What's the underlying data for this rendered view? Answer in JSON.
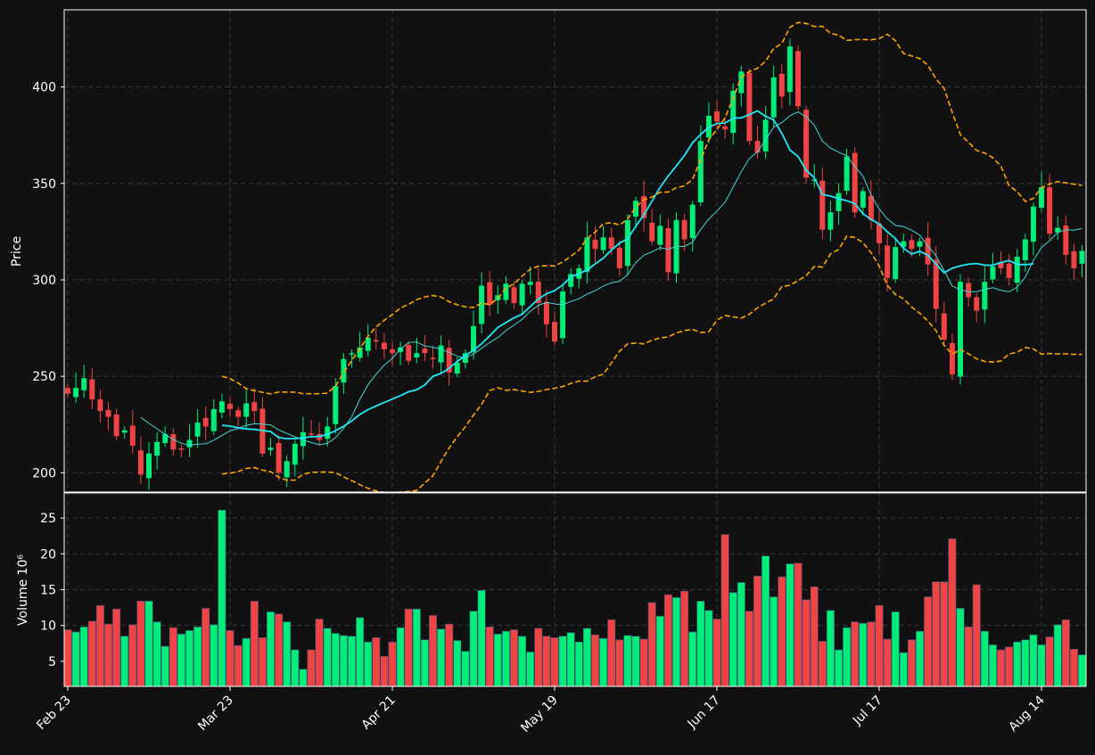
{
  "chart_data": [
    {
      "type": "candlestick",
      "panel": "price",
      "ylabel": "Price",
      "ylim": [
        190,
        440
      ],
      "yticks": [
        200,
        250,
        300,
        350,
        400
      ],
      "x_tick_labels": [
        "Feb 23",
        "Mar 23",
        "Apr 21",
        "May 19",
        "Jun 17",
        "Jul 17",
        "Aug 14"
      ],
      "x_tick_index": [
        0,
        20,
        40,
        60,
        80,
        100,
        120
      ],
      "n_bars": 126,
      "grid": true,
      "colors": {
        "up": "#00ee77",
        "down": "#ee4444",
        "ma_fast": "#3fd9d6",
        "ma_slow": "#21e7f7",
        "bands": "#ffa500",
        "grid": "#3a3a3a",
        "axis": "#ffffff"
      },
      "close": [
        241,
        244,
        249,
        238,
        232,
        229,
        219,
        222,
        214,
        199,
        210,
        216,
        220,
        212,
        212,
        217,
        226,
        224,
        233,
        237,
        233,
        229,
        236,
        232,
        210,
        213,
        200,
        206,
        215,
        221,
        220,
        217,
        224,
        245,
        259,
        262,
        265,
        270,
        268,
        264,
        262,
        265,
        258,
        262,
        262,
        259,
        266,
        252,
        257,
        262,
        276,
        297,
        287,
        292,
        298,
        288,
        298,
        299,
        288,
        277,
        268,
        294,
        303,
        306,
        322,
        316,
        322,
        316,
        306,
        331,
        341,
        332,
        320,
        328,
        304,
        331,
        321,
        339,
        372,
        385,
        382,
        378,
        398,
        408,
        372,
        366,
        383,
        405,
        395,
        421,
        390,
        353,
        352,
        326,
        335,
        345,
        364,
        335,
        346,
        331,
        319,
        301,
        317,
        320,
        316,
        320,
        308,
        285,
        269,
        251,
        299,
        291,
        284,
        299,
        307,
        306,
        301,
        312,
        321,
        338,
        348,
        324,
        327,
        313,
        306,
        315
      ],
      "ma_fast": [
        null,
        null,
        null,
        null,
        null,
        null,
        null,
        null,
        null,
        228.7,
        225.6,
        222.8,
        219.9,
        217.3,
        215.3,
        214.1,
        214.8,
        215.0,
        216.9,
        219.4,
        221.7,
        223.0,
        224.6,
        225.4,
        225.2,
        224.8,
        222.2,
        220.4,
        218.6,
        217.0,
        215.7,
        214.5,
        215.3,
        218.2,
        223.1,
        229.1,
        238.1,
        245.6,
        251.0,
        255.8,
        259.3,
        264.1,
        267.5,
        267.8,
        265.7,
        265.1,
        264.1,
        262.4,
        260.4,
        259.8,
        261.5,
        264.6,
        267.5,
        270.1,
        273.7,
        276.6,
        279.6,
        283.7,
        286.8,
        288.3,
        287.5,
        287.2,
        288.8,
        290.2,
        292.6,
        294.4,
        296.8,
        298.5,
        299.3,
        302.7,
        309.0,
        312.8,
        314.5,
        316.7,
        315.9,
        317.4,
        317.3,
        319.6,
        326.2,
        331.6,
        335.7,
        340.3,
        348.1,
        356.1,
        362.9,
        366.4,
        372.6,
        379.2,
        381.5,
        385.1,
        387.1,
        384.6,
        380.2,
        372.0,
        368.3,
        366.2,
        364.3,
        358.7,
        353.8,
        343.8,
        336.7,
        331.7,
        328.2,
        327.6,
        325.7,
        323.2,
        317.6,
        312.5,
        304.8,
        296.8,
        294.8,
        293.9,
        293.9,
        295.1,
        295.9,
        294.6,
        293.8,
        296.2,
        301.3,
        310.1,
        316.8,
        320.3,
        324.6,
        326.0,
        325.7,
        326.6
      ],
      "ma_slow": [
        null,
        null,
        null,
        null,
        null,
        null,
        null,
        null,
        null,
        null,
        null,
        null,
        null,
        null,
        null,
        null,
        null,
        null,
        null,
        224.6,
        224.2,
        223.3,
        222.7,
        222.5,
        221.9,
        221.4,
        218.2,
        217.7,
        217.7,
        218.1,
        218.7,
        218.8,
        219.9,
        221.8,
        224.1,
        226.9,
        230.2,
        232.7,
        234.6,
        236.4,
        238.2,
        240.0,
        242.0,
        243.0,
        245.5,
        250.0,
        251.5,
        254.2,
        257.7,
        260.7,
        263.5,
        266.9,
        271.0,
        275.3,
        277.9,
        280.3,
        282.2,
        286.2,
        290.1,
        292.8,
        294.4,
        297.4,
        301.5,
        303.2,
        305.0,
        308.3,
        311.3,
        315.4,
        319.0,
        321.3,
        327.8,
        333.7,
        340.8,
        348.0,
        353.8,
        359.1,
        364.5,
        371.1,
        375.4,
        379.0,
        381.1,
        381.3,
        383.8,
        384.0,
        385.7,
        387.6,
        384.8,
        382.9,
        376.0,
        367.3,
        364.0,
        356.8,
        353.0,
        344.3,
        343.4,
        342.1,
        341.0,
        339.5,
        334.3,
        331.3,
        329.0,
        325.0,
        321.4,
        316.4,
        313.4,
        314.8,
        312.8,
        308.1,
        303.7,
        306.1,
        307.3,
        308.1,
        308.5,
        307.6,
        307.6,
        309.0,
        310.0,
        308.0,
        307.9,
        308.3
      ]
    },
    {
      "type": "bar",
      "panel": "volume",
      "ylabel": "Volume  10⁶",
      "ylim": [
        1.5,
        28.5
      ],
      "yticks": [
        5,
        10,
        15,
        20,
        25
      ],
      "values": [
        9.4,
        9.1,
        9.8,
        10.6,
        12.8,
        10.2,
        12.3,
        8.5,
        10.1,
        13.4,
        13.4,
        10.5,
        7.1,
        9.7,
        8.8,
        9.3,
        9.8,
        12.4,
        10.1,
        26.1,
        9.3,
        7.2,
        8.2,
        13.4,
        8.3,
        11.9,
        11.6,
        10.5,
        6.6,
        3.9,
        6.6,
        10.9,
        9.6,
        8.9,
        8.6,
        8.5,
        11.1,
        7.7,
        8.3,
        5.7,
        7.7,
        9.7,
        12.3,
        12.3,
        8.0,
        11.4,
        9.5,
        10.2,
        7.9,
        6.4,
        12.0,
        14.9,
        9.8,
        8.8,
        9.2,
        9.4,
        8.5,
        6.3,
        9.6,
        8.5,
        8.3,
        8.5,
        9.0,
        7.7,
        9.6,
        8.7,
        8.2,
        10.8,
        8.0,
        8.6,
        8.5,
        8.1,
        13.2,
        11.3,
        14.3,
        13.9,
        14.8,
        9.1,
        13.4,
        12.1,
        10.9,
        22.7,
        14.6,
        16.0,
        12.0,
        16.9,
        19.7,
        14.0,
        16.8,
        18.6,
        18.7,
        13.6,
        15.4,
        7.8,
        12.1,
        6.6,
        9.7,
        10.5,
        10.3,
        10.5,
        12.8,
        8.1,
        11.9,
        6.2,
        8.0,
        9.2,
        14.0,
        16.1,
        16.1,
        22.1,
        12.4,
        9.8,
        15.7,
        9.2,
        7.3,
        6.6,
        7.0,
        7.7,
        8.0,
        8.7,
        7.3,
        8.4,
        10.1,
        10.8,
        6.7,
        5.9
      ]
    }
  ]
}
